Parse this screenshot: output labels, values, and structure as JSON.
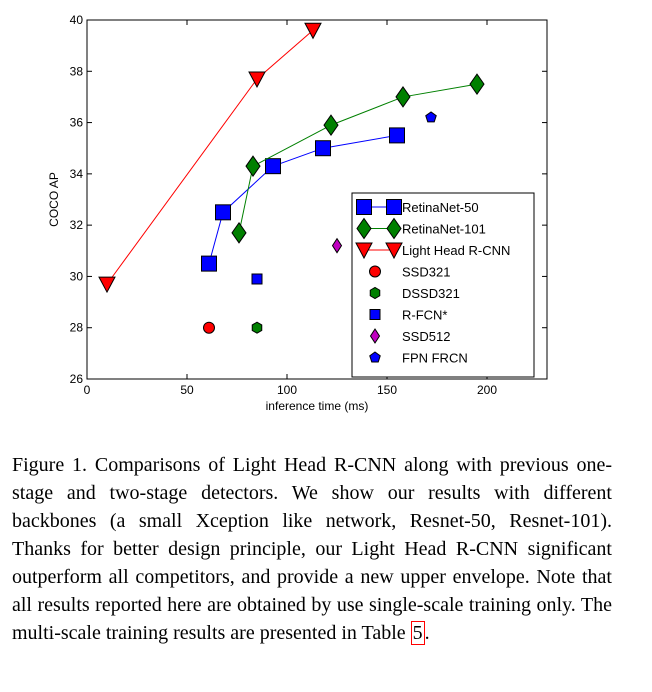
{
  "chart_data": {
    "type": "scatter",
    "title": "",
    "xlabel": "inference time (ms)",
    "ylabel": "COCO AP",
    "xlim": [
      0,
      230
    ],
    "ylim": [
      26,
      40
    ],
    "xticks": [
      0,
      50,
      100,
      150,
      200
    ],
    "yticks": [
      26,
      28,
      30,
      32,
      34,
      36,
      38,
      40
    ],
    "grid": false,
    "legend_position": "right",
    "series": [
      {
        "name": "RetinaNet-50",
        "color": "#0000ff",
        "marker": "square",
        "line": true,
        "points": [
          [
            61,
            30.5
          ],
          [
            68,
            32.5
          ],
          [
            93,
            34.3
          ],
          [
            118,
            35.0
          ],
          [
            155,
            35.5
          ]
        ]
      },
      {
        "name": "RetinaNet-101",
        "color": "#008000",
        "marker": "diamond",
        "line": true,
        "points": [
          [
            76,
            31.7
          ],
          [
            83,
            34.3
          ],
          [
            122,
            35.9
          ],
          [
            158,
            37.0
          ],
          [
            195,
            37.5
          ]
        ]
      },
      {
        "name": "Light Head R-CNN",
        "color": "#ff0000",
        "marker": "triangle-down",
        "line": true,
        "points": [
          [
            10,
            29.7
          ],
          [
            85,
            37.7
          ],
          [
            113,
            39.6
          ]
        ]
      },
      {
        "name": "SSD321",
        "color": "#ff0000",
        "marker": "circle",
        "line": false,
        "points": [
          [
            61,
            28.0
          ]
        ]
      },
      {
        "name": "DSSD321",
        "color": "#008000",
        "marker": "hexagon",
        "line": false,
        "points": [
          [
            85,
            28.0
          ]
        ]
      },
      {
        "name": "R-FCN*",
        "color": "#0000ff",
        "marker": "square-small",
        "line": false,
        "points": [
          [
            85,
            29.9
          ]
        ]
      },
      {
        "name": "SSD512",
        "color": "#c000c0",
        "marker": "diamond-small",
        "line": false,
        "points": [
          [
            125,
            31.2
          ]
        ]
      },
      {
        "name": "FPN FRCN",
        "color": "#0000ff",
        "marker": "pentagon",
        "line": false,
        "points": [
          [
            172,
            36.2
          ]
        ]
      }
    ]
  },
  "caption": {
    "text": "Figure 1. Comparisons of Light Head R-CNN along with previous one-stage and two-stage detectors. We show our results with different backbones (a small Xception like network, Resnet-50, Resnet-101). Thanks for better design principle, our Light Head R-CNN significant outperform all competitors, and provide a new upper envelope. Note that all results reported here are obtained by use single-scale training only. The multi-scale training results are presented in Table ",
    "ref": "5",
    "end": "."
  }
}
